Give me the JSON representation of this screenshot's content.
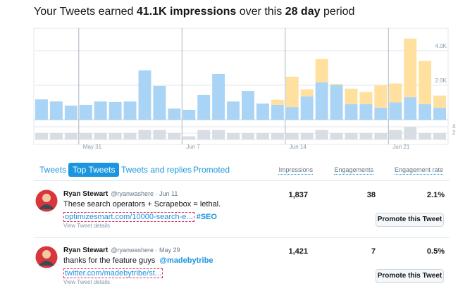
{
  "title": {
    "lead": "Your Tweets earned",
    "impressions": "41.1K impressions",
    "middle": "over this",
    "period": "28 day",
    "tail": "period"
  },
  "chart_data": {
    "type": "bar",
    "stacked": true,
    "categories": [
      null,
      null,
      null,
      "May 31",
      null,
      null,
      null,
      null,
      null,
      null,
      "Jun 7",
      null,
      null,
      null,
      null,
      null,
      null,
      "Jun 14",
      null,
      null,
      null,
      null,
      null,
      null,
      "Jun 21",
      null,
      null,
      null
    ],
    "series": [
      {
        "color": "#a9d4f5",
        "values": [
          1180,
          1060,
          820,
          860,
          1060,
          1020,
          1060,
          2860,
          1960,
          650,
          570,
          1430,
          2650,
          1060,
          1670,
          940,
          860,
          730,
          1350,
          2160,
          2000,
          900,
          900,
          700,
          1000,
          1300,
          900,
          700
        ]
      },
      {
        "color": "#ffe09e",
        "values": [
          0,
          0,
          0,
          0,
          0,
          0,
          0,
          0,
          0,
          0,
          0,
          0,
          0,
          0,
          0,
          0,
          290,
          1760,
          410,
          1350,
          80,
          900,
          700,
          1300,
          1100,
          3400,
          2500,
          700
        ]
      },
      {
        "color": "#d7dde2",
        "axis": "y2",
        "values": [
          2,
          2,
          2,
          2,
          2,
          2,
          2,
          3,
          3,
          2,
          1,
          3,
          3,
          2,
          2,
          2,
          2,
          2,
          2,
          3,
          2,
          2,
          2,
          2,
          3,
          4,
          2,
          2
        ]
      }
    ],
    "ylim": [
      0,
      5300
    ],
    "yticks": [
      {
        "value": 2000,
        "label": "2.0K"
      },
      {
        "value": 4000,
        "label": "4.0K"
      }
    ],
    "y2lim": [
      0,
      5
    ],
    "y2ticks": [
      2,
      4
    ],
    "grid": true
  },
  "tabs": {
    "items": [
      "Tweets",
      "Top Tweets",
      "Tweets and replies",
      "Promoted"
    ],
    "active": 1
  },
  "columns": [
    "Impressions",
    "Engagements",
    "Engagement rate"
  ],
  "tweets": [
    {
      "name": "Ryan Stewart",
      "meta": "@ryanwashere · Jun 11",
      "text": "These search operators + Scrapebox = lethal.",
      "mention": null,
      "link": "optimizesmart.com/10000-search-e...",
      "hashtag": "#SEO",
      "details": "View Tweet details",
      "impressions": "1,837",
      "engagements": "38",
      "rate": "2.1%",
      "button": "Promote this Tweet"
    },
    {
      "name": "Ryan Stewart",
      "meta": "@ryanwashere · May 29",
      "text": "thanks for the feature guys",
      "mention": "@madebytribe",
      "link": "twitter.com/madebytribe/st...",
      "hashtag": null,
      "details": "View Tweet details",
      "impressions": "1,421",
      "engagements": "7",
      "rate": "0.5%",
      "button": "Promote this Tweet"
    }
  ]
}
